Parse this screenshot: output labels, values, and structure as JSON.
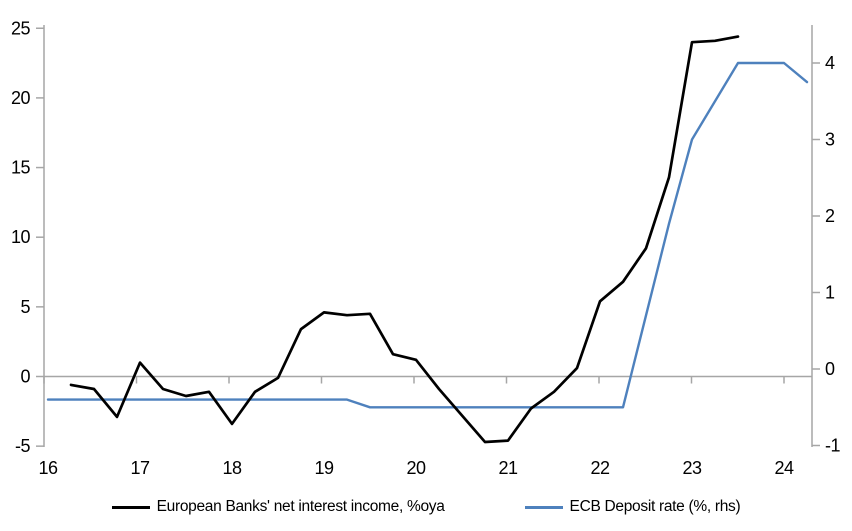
{
  "chart_data": {
    "type": "line",
    "title": "",
    "legend_position": "bottom",
    "grid": "zero-line-only",
    "x_axis": {
      "tick_labels": [
        "16",
        "17",
        "18",
        "19",
        "20",
        "21",
        "22",
        "23",
        "24"
      ],
      "tick_values": [
        16,
        17,
        18,
        19,
        20,
        21,
        22,
        23,
        24
      ],
      "range": [
        15.95,
        24.3
      ]
    },
    "left_axis": {
      "label": "",
      "ticks": [
        -5,
        0,
        5,
        10,
        15,
        20,
        25
      ],
      "range": [
        -5,
        25
      ]
    },
    "right_axis": {
      "label": "",
      "ticks": [
        -1,
        0,
        1,
        2,
        3,
        4
      ],
      "range": [
        -1,
        4.5
      ]
    },
    "series": [
      {
        "name": "European Banks' net interest income, %oya",
        "axis": "left",
        "color": "#000000",
        "line_width": 2.7,
        "x": [
          16.25,
          16.5,
          16.75,
          17.0,
          17.25,
          17.5,
          17.75,
          18.0,
          18.25,
          18.5,
          18.75,
          19.0,
          19.25,
          19.5,
          19.75,
          20.0,
          20.25,
          20.5,
          20.75,
          21.0,
          21.25,
          21.5,
          21.75,
          22.0,
          22.25,
          22.5,
          22.75,
          23.0,
          23.25,
          23.5
        ],
        "values": [
          -0.6,
          -0.9,
          -2.9,
          1.0,
          -0.9,
          -1.4,
          -1.1,
          -3.4,
          -1.1,
          -0.1,
          3.4,
          4.6,
          4.4,
          4.5,
          1.6,
          1.2,
          -0.9,
          -2.8,
          -4.7,
          -4.6,
          -2.3,
          -1.1,
          0.6,
          5.4,
          6.8,
          9.2,
          14.3,
          24.0,
          24.1,
          24.4
        ]
      },
      {
        "name": "ECB Deposit rate (%, rhs)",
        "axis": "right",
        "color": "#4E81BD",
        "line_width": 2.4,
        "x": [
          16.0,
          16.25,
          16.5,
          16.75,
          17.0,
          17.25,
          17.5,
          17.75,
          18.0,
          18.25,
          18.5,
          18.75,
          19.0,
          19.25,
          19.5,
          19.75,
          20.0,
          20.25,
          20.5,
          20.75,
          21.0,
          21.25,
          21.5,
          21.75,
          22.0,
          22.25,
          22.5,
          22.75,
          23.0,
          23.25,
          23.5,
          23.75,
          24.0,
          24.25
        ],
        "values": [
          -0.4,
          -0.4,
          -0.4,
          -0.4,
          -0.4,
          -0.4,
          -0.4,
          -0.4,
          -0.4,
          -0.4,
          -0.4,
          -0.4,
          -0.4,
          -0.4,
          -0.5,
          -0.5,
          -0.5,
          -0.5,
          -0.5,
          -0.5,
          -0.5,
          -0.5,
          -0.5,
          -0.5,
          -0.5,
          -0.5,
          0.7,
          1.9,
          3.0,
          3.5,
          4.0,
          4.0,
          4.0,
          3.75
        ]
      }
    ]
  },
  "colors": {
    "axis": "#A6A6A6",
    "tick_text": "#000000",
    "background": "#FFFFFF"
  }
}
